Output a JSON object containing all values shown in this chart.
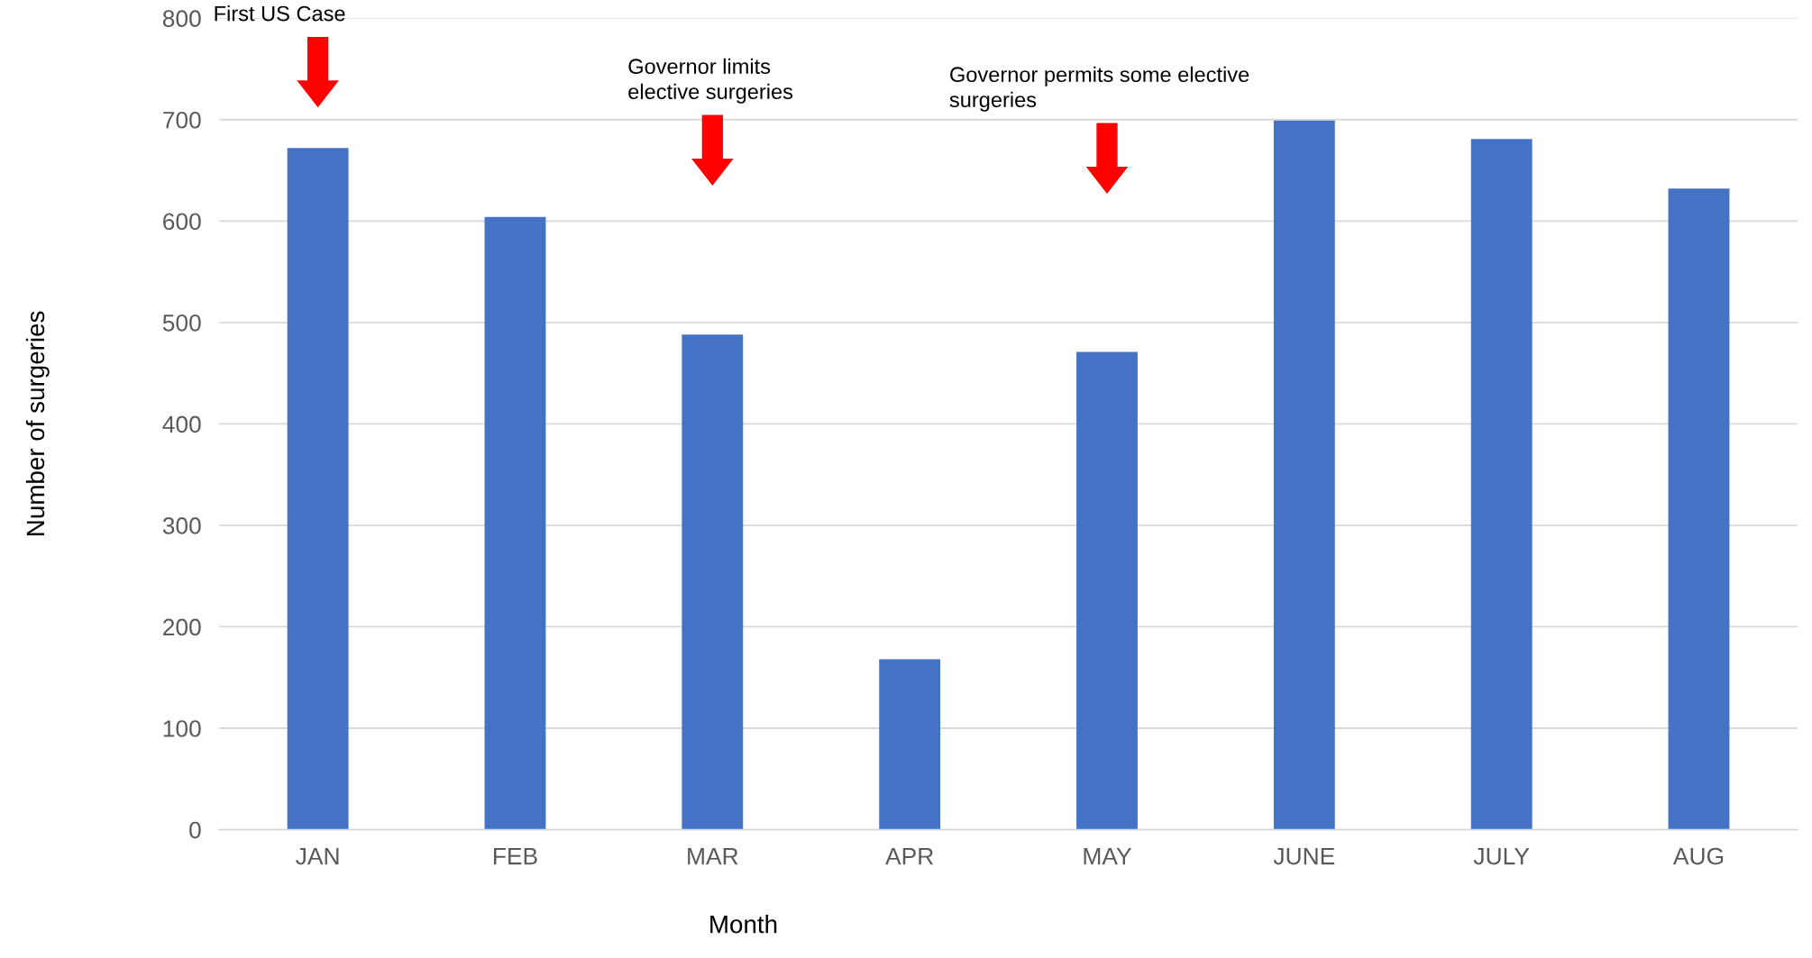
{
  "chart_data": {
    "type": "bar",
    "xlabel": "Month",
    "ylabel": "Number of surgeries",
    "categories": [
      "JAN",
      "FEB",
      "MAR",
      "APR",
      "MAY",
      "JUNE",
      "JULY",
      "AUG"
    ],
    "values": [
      672,
      604,
      488,
      168,
      471,
      699,
      681,
      632
    ],
    "color": "#4472c4",
    "ylim": [
      0,
      800
    ],
    "yticks": [
      0,
      100,
      200,
      300,
      400,
      500,
      600,
      700,
      800
    ],
    "grid": "y",
    "annotations": [
      "First US Case",
      "Governor limits\nelective surgeries",
      "Governor permits some elective\nsurgeries"
    ]
  }
}
